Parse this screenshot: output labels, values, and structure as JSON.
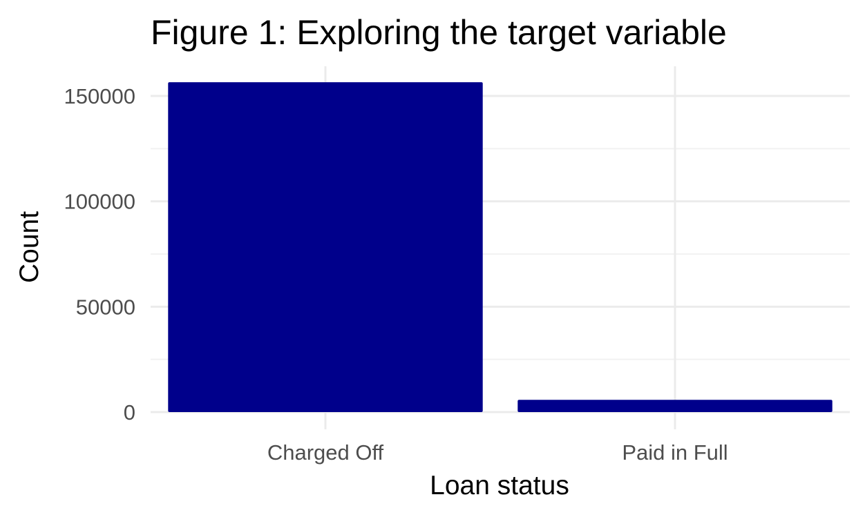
{
  "chart_data": {
    "type": "bar",
    "title": "Figure 1: Exploring the target variable",
    "xlabel": "Loan status",
    "ylabel": "Count",
    "categories": [
      "Charged Off",
      "Paid in Full"
    ],
    "values": [
      156500,
      5800
    ],
    "ylim": [
      0,
      162000
    ],
    "yticks": [
      0,
      50000,
      100000,
      150000
    ],
    "ytick_labels": [
      "0",
      "50000",
      "100000",
      "150000"
    ],
    "grid": true,
    "bar_color": "#00008B",
    "grid_color": "#EBEBEB"
  }
}
